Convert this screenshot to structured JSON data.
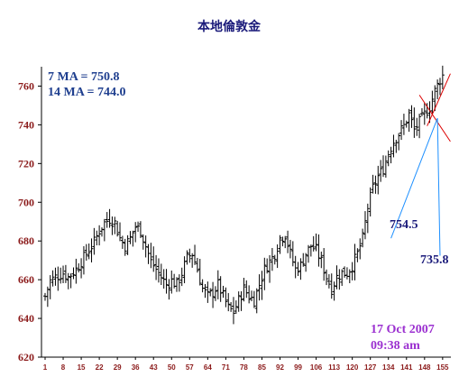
{
  "chart_data": {
    "type": "ohlc",
    "title": "本地倫敦金",
    "ylim": [
      620,
      770
    ],
    "y_ticks": [
      "760",
      "740",
      "720",
      "700",
      "680",
      "660",
      "640",
      "620"
    ],
    "x_ticks": [
      "1",
      "8",
      "15",
      "22",
      "29",
      "36",
      "43",
      "50",
      "57",
      "64",
      "71",
      "78",
      "85",
      "92",
      "99",
      "106",
      "113",
      "120",
      "127",
      "134",
      "141",
      "148",
      "155"
    ],
    "xlim": [
      1,
      156
    ],
    "ma_labels": [
      "7 MA = 750.8",
      "14 MA = 744.0"
    ],
    "annotations": [
      {
        "text": "754.5",
        "color": "#1a1a7a"
      },
      {
        "text": "735.8",
        "color": "#1a1a7a"
      }
    ],
    "timestamp": [
      "17 Oct 2007",
      "09:38 am"
    ],
    "colors": {
      "axis": "#000000",
      "tick_text": "#8b1a1a",
      "bars": "#000000",
      "trend_red": "#dd0000",
      "trend_blue": "#1e90ff",
      "stamp": "#9b30d0"
    },
    "trend_lines": [
      {
        "color": "#dd0000",
        "from": [
          146,
          754
        ],
        "to": [
          158,
          730
        ]
      },
      {
        "color": "#dd0000",
        "from": [
          149,
          738
        ],
        "to": [
          158,
          765
        ]
      },
      {
        "color": "#1e90ff",
        "from": [
          135,
          680
        ],
        "to": [
          153,
          742
        ]
      },
      {
        "color": "#1e90ff",
        "from": [
          153,
          742
        ],
        "to": [
          154,
          671
        ]
      }
    ],
    "close_anchors": [
      [
        1,
        650
      ],
      [
        3,
        658
      ],
      [
        5,
        660
      ],
      [
        8,
        662
      ],
      [
        10,
        660
      ],
      [
        13,
        664
      ],
      [
        15,
        668
      ],
      [
        18,
        674
      ],
      [
        20,
        678
      ],
      [
        22,
        684
      ],
      [
        24,
        688
      ],
      [
        26,
        690
      ],
      [
        28,
        688
      ],
      [
        30,
        680
      ],
      [
        32,
        676
      ],
      [
        34,
        680
      ],
      [
        36,
        686
      ],
      [
        38,
        684
      ],
      [
        40,
        676
      ],
      [
        42,
        668
      ],
      [
        44,
        664
      ],
      [
        46,
        660
      ],
      [
        48,
        656
      ],
      [
        50,
        658
      ],
      [
        52,
        656
      ],
      [
        54,
        662
      ],
      [
        56,
        670
      ],
      [
        58,
        672
      ],
      [
        60,
        664
      ],
      [
        62,
        654
      ],
      [
        64,
        650
      ],
      [
        66,
        652
      ],
      [
        68,
        656
      ],
      [
        70,
        650
      ],
      [
        72,
        644
      ],
      [
        74,
        642
      ],
      [
        76,
        648
      ],
      [
        78,
        654
      ],
      [
        80,
        650
      ],
      [
        82,
        648
      ],
      [
        84,
        656
      ],
      [
        86,
        664
      ],
      [
        88,
        668
      ],
      [
        90,
        672
      ],
      [
        92,
        680
      ],
      [
        94,
        682
      ],
      [
        96,
        672
      ],
      [
        98,
        664
      ],
      [
        100,
        666
      ],
      [
        102,
        672
      ],
      [
        104,
        676
      ],
      [
        106,
        674
      ],
      [
        108,
        668
      ],
      [
        110,
        660
      ],
      [
        112,
        654
      ],
      [
        114,
        660
      ],
      [
        116,
        662
      ],
      [
        118,
        662
      ],
      [
        120,
        666
      ],
      [
        122,
        672
      ],
      [
        124,
        680
      ],
      [
        126,
        696
      ],
      [
        128,
        706
      ],
      [
        130,
        712
      ],
      [
        132,
        716
      ],
      [
        134,
        724
      ],
      [
        136,
        730
      ],
      [
        138,
        734
      ],
      [
        140,
        738
      ],
      [
        142,
        744
      ],
      [
        144,
        736
      ],
      [
        146,
        740
      ],
      [
        148,
        744
      ],
      [
        150,
        748
      ],
      [
        152,
        756
      ],
      [
        154,
        762
      ],
      [
        155,
        764
      ]
    ]
  }
}
